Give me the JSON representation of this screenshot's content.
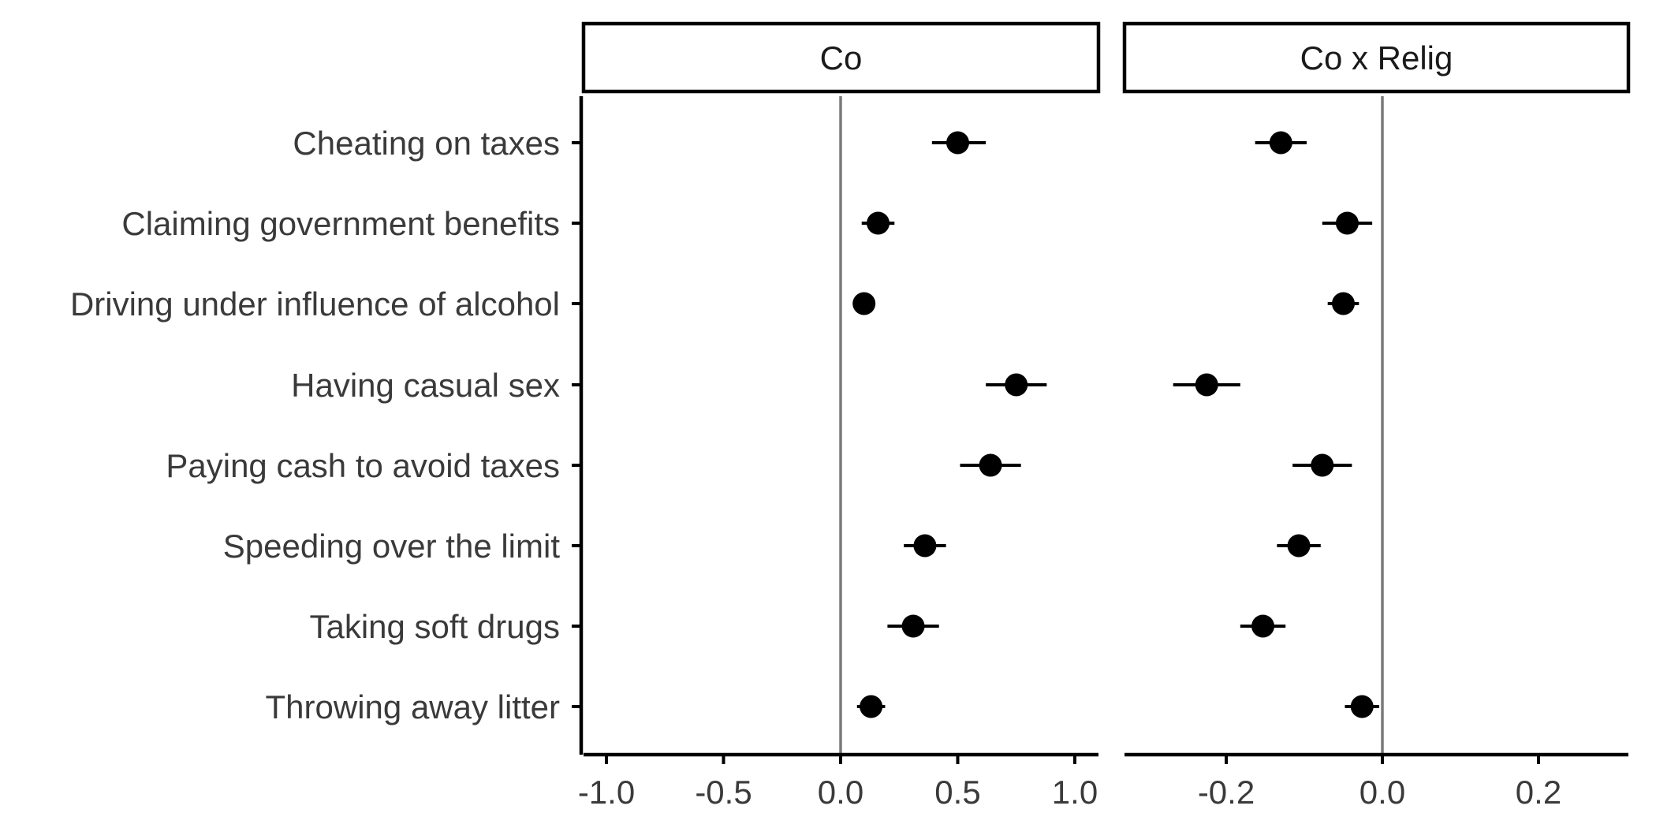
{
  "chart_data": {
    "type": "scatter",
    "categories": [
      "Cheating on taxes",
      "Claiming government benefits",
      "Driving under influence of alcohol",
      "Having casual sex",
      "Paying cash to avoid taxes",
      "Speeding over the limit",
      "Taking soft drugs",
      "Throwing away litter"
    ],
    "panels": [
      {
        "title": "Co",
        "xlim": [
          -1.1,
          1.1
        ],
        "ticks": [
          -1.0,
          -0.5,
          0.0,
          0.5,
          1.0
        ],
        "tick_labels": [
          "-1.0",
          "-0.5",
          "0.0",
          "0.5",
          "1.0"
        ],
        "reference_line": 0,
        "estimates": [
          0.5,
          0.16,
          0.1,
          0.75,
          0.64,
          0.36,
          0.31,
          0.13
        ],
        "lower": [
          0.39,
          0.09,
          0.08,
          0.62,
          0.51,
          0.27,
          0.2,
          0.07
        ],
        "upper": [
          0.62,
          0.23,
          0.13,
          0.88,
          0.77,
          0.45,
          0.42,
          0.19
        ]
      },
      {
        "title": "Co x Relig",
        "xlim": [
          -0.33,
          0.33
        ],
        "ticks": [
          -0.2,
          0.0,
          0.2
        ],
        "tick_labels": [
          "-0.2",
          "0.0",
          "0.2"
        ],
        "reference_line": 0,
        "estimates": [
          -0.13,
          -0.045,
          -0.05,
          -0.225,
          -0.077,
          -0.107,
          -0.153,
          -0.026
        ],
        "lower": [
          -0.163,
          -0.077,
          -0.07,
          -0.268,
          -0.115,
          -0.135,
          -0.182,
          -0.048
        ],
        "upper": [
          -0.097,
          -0.013,
          -0.03,
          -0.182,
          -0.039,
          -0.079,
          -0.124,
          -0.004
        ]
      }
    ],
    "grid": false,
    "legend": "none"
  }
}
